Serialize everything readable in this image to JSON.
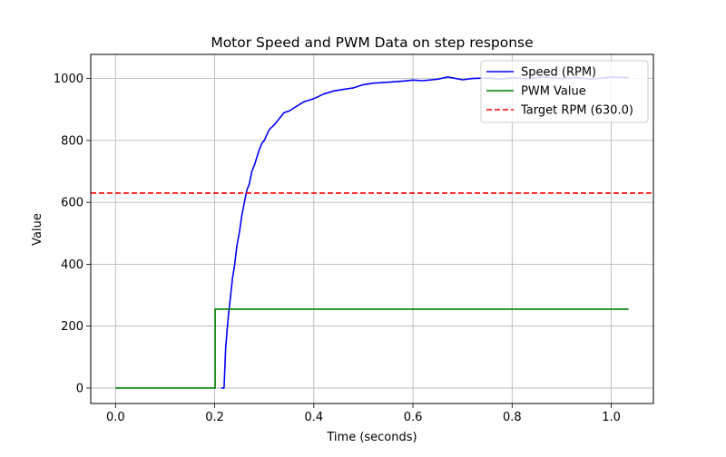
{
  "chart_data": {
    "type": "line",
    "title": "Motor Speed and PWM Data on step response",
    "xlabel": "Time (seconds)",
    "ylabel": "Value",
    "xlim": [
      -0.05,
      1.085
    ],
    "ylim": [
      -50,
      1078
    ],
    "xticks": [
      0.0,
      0.2,
      0.4,
      0.6,
      0.8,
      1.0
    ],
    "xtick_labels": [
      "0.0",
      "0.2",
      "0.4",
      "0.6",
      "0.8",
      "1.0"
    ],
    "yticks": [
      0,
      200,
      400,
      600,
      800,
      1000
    ],
    "ytick_labels": [
      "0",
      "200",
      "400",
      "600",
      "800",
      "1000"
    ],
    "grid": true,
    "legend_position": "top-right",
    "series": [
      {
        "name": "Speed (RPM)",
        "color": "#0000ff",
        "style": "solid",
        "x": [
          0.213,
          0.215,
          0.217,
          0.219,
          0.222,
          0.225,
          0.228,
          0.232,
          0.236,
          0.24,
          0.245,
          0.25,
          0.255,
          0.26,
          0.265,
          0.27,
          0.275,
          0.28,
          0.285,
          0.29,
          0.295,
          0.3,
          0.31,
          0.32,
          0.33,
          0.34,
          0.35,
          0.36,
          0.37,
          0.38,
          0.39,
          0.4,
          0.42,
          0.44,
          0.46,
          0.48,
          0.5,
          0.52,
          0.55,
          0.58,
          0.6,
          0.62,
          0.65,
          0.67,
          0.7,
          0.72,
          0.75,
          0.78,
          0.8,
          0.83,
          0.86,
          0.9,
          0.93,
          0.96,
          1.0,
          1.035
        ],
        "y": [
          0,
          0,
          0,
          0,
          125,
          185,
          240,
          295,
          355,
          395,
          460,
          505,
          560,
          600,
          640,
          660,
          700,
          720,
          745,
          770,
          790,
          800,
          835,
          850,
          870,
          890,
          895,
          905,
          915,
          925,
          930,
          935,
          950,
          960,
          965,
          970,
          980,
          985,
          988,
          992,
          995,
          993,
          998,
          1005,
          996,
          1000,
          1002,
          998,
          1003,
          999,
          1005,
          1000,
          1003,
          998,
          1005,
          1003
        ]
      },
      {
        "name": "PWM Value",
        "color": "#008000",
        "style": "solid",
        "x": [
          0.0,
          0.201,
          0.201,
          1.035
        ],
        "y": [
          0,
          0,
          255,
          255
        ]
      },
      {
        "name": "Target RPM (630.0)",
        "color": "#ff0000",
        "style": "dashed",
        "hline": 630
      }
    ]
  }
}
